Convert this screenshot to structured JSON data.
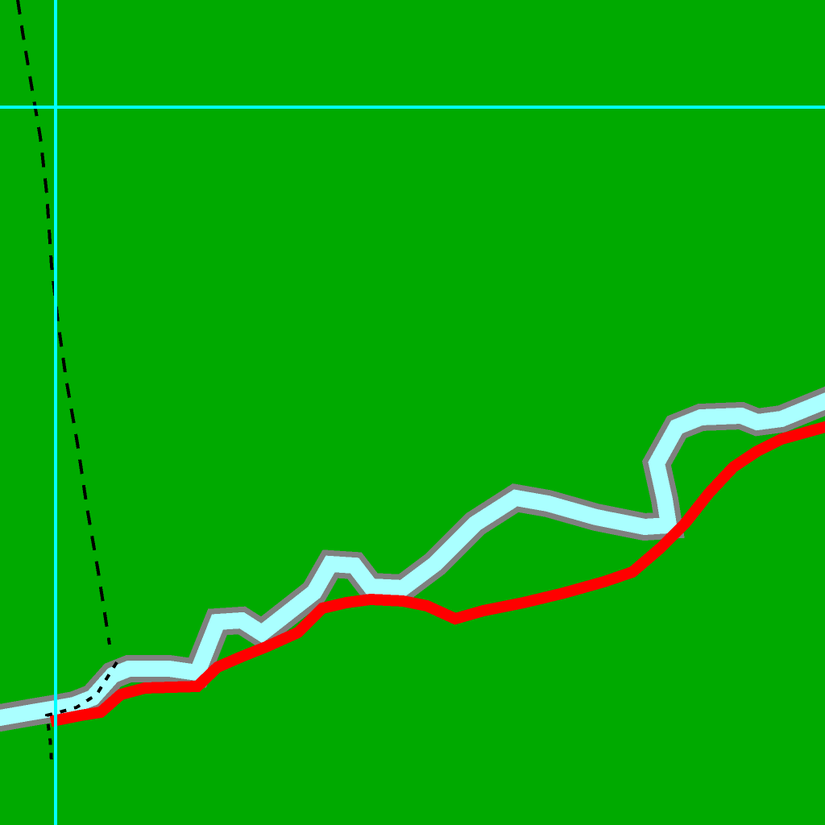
{
  "scene": {
    "background_color": "#00aa00",
    "river_color": "#aaffff",
    "river_bank_color": "#808080",
    "route_color": "#ff0000",
    "crosshair_color": "#00ffff",
    "trail_color": "#000000"
  }
}
